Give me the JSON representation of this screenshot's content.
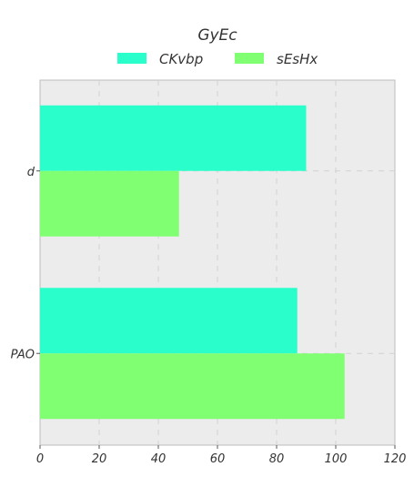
{
  "chart_data": {
    "type": "bar",
    "orientation": "horizontal",
    "title": "GyEc",
    "xlabel": "",
    "ylabel": "",
    "categories": [
      "d",
      "PAO"
    ],
    "series": [
      {
        "name": "CKvbp",
        "values": [
          90,
          87
        ],
        "color": "#2affcc"
      },
      {
        "name": "sEsHx",
        "values": [
          47,
          103
        ],
        "color": "#80ff72"
      }
    ],
    "xlim": [
      0,
      120
    ],
    "xticks": [
      0,
      20,
      40,
      60,
      80,
      100,
      120
    ],
    "grid": true,
    "grid_style": "dashed",
    "legend_position": "top-center",
    "plot_background": "#ececec"
  }
}
